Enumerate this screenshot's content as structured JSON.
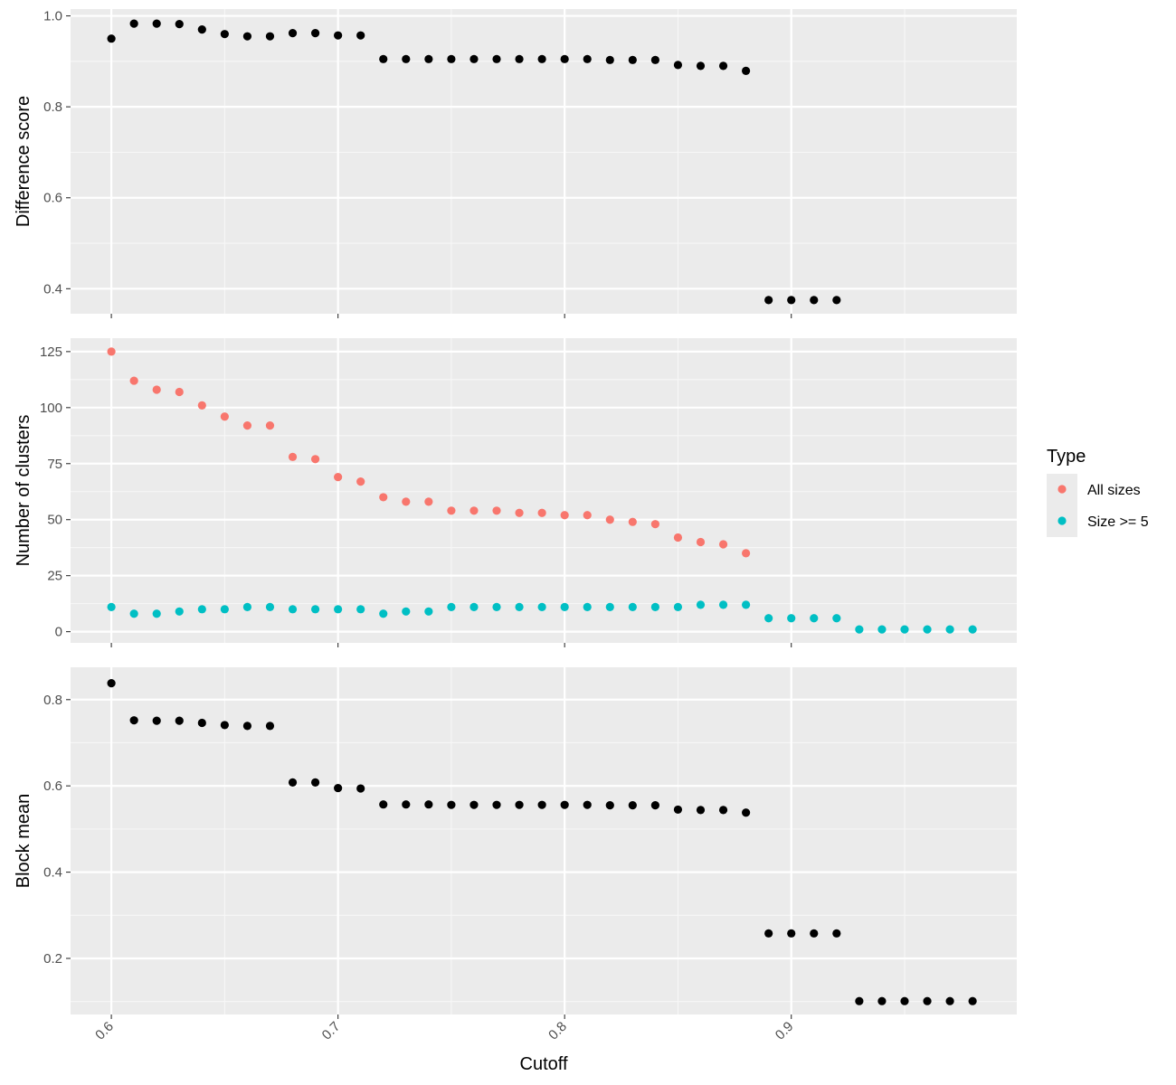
{
  "chart_data": {
    "type": "scatter",
    "xlabel": "Cutoff",
    "x_ticks": [
      0.6,
      0.7,
      0.8,
      0.9
    ],
    "x_tick_labels": [
      "0.6",
      "0.7",
      "0.8",
      "0.9"
    ],
    "xlim": [
      0.582,
      0.9995
    ],
    "grid": true,
    "legend_position": "right",
    "legend": {
      "title": "Type",
      "entries": [
        {
          "label": "All sizes",
          "color": "#F8766D"
        },
        {
          "label": "Size >= 5",
          "color": "#00BFC4"
        }
      ]
    },
    "panels": [
      {
        "ylabel": "Difference score",
        "ylim": [
          0.345,
          1.015
        ],
        "y_ticks": [
          0.4,
          0.6,
          0.8,
          1.0
        ],
        "y_tick_labels": [
          "0.4",
          "0.6",
          "0.8",
          "1.0"
        ],
        "series": [
          {
            "color": "#000000",
            "x": [
              0.6,
              0.61,
              0.62,
              0.63,
              0.64,
              0.65,
              0.66,
              0.67,
              0.68,
              0.69,
              0.7,
              0.71,
              0.72,
              0.73,
              0.74,
              0.75,
              0.76,
              0.77,
              0.78,
              0.79,
              0.8,
              0.81,
              0.82,
              0.83,
              0.84,
              0.85,
              0.86,
              0.87,
              0.88,
              0.89,
              0.9,
              0.91,
              0.92
            ],
            "y": [
              0.95,
              0.983,
              0.983,
              0.982,
              0.97,
              0.96,
              0.955,
              0.955,
              0.962,
              0.962,
              0.957,
              0.957,
              0.905,
              0.905,
              0.905,
              0.905,
              0.905,
              0.905,
              0.905,
              0.905,
              0.905,
              0.905,
              0.903,
              0.903,
              0.903,
              0.892,
              0.89,
              0.89,
              0.879,
              0.375,
              0.375,
              0.375,
              0.375
            ]
          }
        ]
      },
      {
        "ylabel": "Number of clusters",
        "ylim": [
          -5,
          131
        ],
        "y_ticks": [
          0,
          25,
          50,
          75,
          100,
          125
        ],
        "y_tick_labels": [
          "0",
          "25",
          "50",
          "75",
          "100",
          "125"
        ],
        "series": [
          {
            "name": "All sizes",
            "color": "#F8766D",
            "x": [
              0.6,
              0.61,
              0.62,
              0.63,
              0.64,
              0.65,
              0.66,
              0.67,
              0.68,
              0.69,
              0.7,
              0.71,
              0.72,
              0.73,
              0.74,
              0.75,
              0.76,
              0.77,
              0.78,
              0.79,
              0.8,
              0.81,
              0.82,
              0.83,
              0.84,
              0.85,
              0.86,
              0.87,
              0.88
            ],
            "y": [
              125,
              112,
              108,
              107,
              101,
              96,
              92,
              92,
              78,
              77,
              69,
              67,
              60,
              58,
              58,
              54,
              54,
              54,
              53,
              53,
              52,
              52,
              50,
              49,
              48,
              42,
              40,
              39,
              35
            ]
          },
          {
            "name": "Size >= 5",
            "color": "#00BFC4",
            "x": [
              0.6,
              0.61,
              0.62,
              0.63,
              0.64,
              0.65,
              0.66,
              0.67,
              0.68,
              0.69,
              0.7,
              0.71,
              0.72,
              0.73,
              0.74,
              0.75,
              0.76,
              0.77,
              0.78,
              0.79,
              0.8,
              0.81,
              0.82,
              0.83,
              0.84,
              0.85,
              0.86,
              0.87,
              0.88,
              0.89,
              0.9,
              0.91,
              0.92,
              0.93,
              0.94,
              0.95,
              0.96,
              0.97,
              0.98
            ],
            "y": [
              11,
              8,
              8,
              9,
              10,
              10,
              11,
              11,
              10,
              10,
              10,
              10,
              8,
              9,
              9,
              11,
              11,
              11,
              11,
              11,
              11,
              11,
              11,
              11,
              11,
              11,
              12,
              12,
              12,
              6,
              6,
              6,
              6,
              1,
              1,
              1,
              1,
              1,
              1
            ]
          }
        ]
      },
      {
        "ylabel": "Block mean",
        "ylim": [
          0.07,
          0.875
        ],
        "y_ticks": [
          0.2,
          0.4,
          0.6,
          0.8
        ],
        "y_tick_labels": [
          "0.2",
          "0.4",
          "0.6",
          "0.8"
        ],
        "series": [
          {
            "color": "#000000",
            "x": [
              0.6,
              0.61,
              0.62,
              0.63,
              0.64,
              0.65,
              0.66,
              0.67,
              0.68,
              0.69,
              0.7,
              0.71,
              0.72,
              0.73,
              0.74,
              0.75,
              0.76,
              0.77,
              0.78,
              0.79,
              0.8,
              0.81,
              0.82,
              0.83,
              0.84,
              0.85,
              0.86,
              0.87,
              0.88,
              0.89,
              0.9,
              0.91,
              0.92,
              0.93,
              0.94,
              0.95,
              0.96,
              0.97,
              0.98
            ],
            "y": [
              0.838,
              0.752,
              0.751,
              0.751,
              0.746,
              0.741,
              0.739,
              0.739,
              0.608,
              0.608,
              0.595,
              0.594,
              0.557,
              0.557,
              0.557,
              0.556,
              0.556,
              0.556,
              0.556,
              0.556,
              0.556,
              0.556,
              0.555,
              0.555,
              0.555,
              0.545,
              0.544,
              0.544,
              0.538,
              0.258,
              0.258,
              0.258,
              0.258,
              0.101,
              0.101,
              0.101,
              0.101,
              0.101,
              0.101
            ]
          }
        ]
      }
    ]
  }
}
